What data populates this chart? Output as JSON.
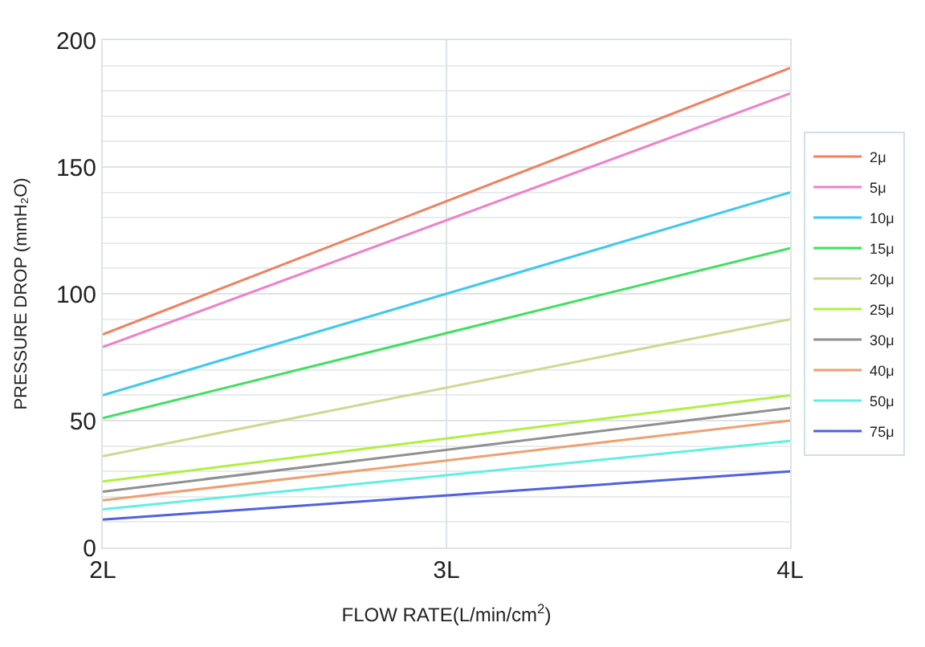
{
  "chart_data": {
    "type": "line",
    "xlabel": "FLOW RATE(L/min/cm$^{2}$)",
    "ylabel": "PRESSURE DROP (mmH₂O)",
    "x": [
      2,
      4
    ],
    "xlim": [
      2,
      4
    ],
    "xticks": [
      {
        "value": 2,
        "label": "2L"
      },
      {
        "value": 3,
        "label": "3L"
      },
      {
        "value": 4,
        "label": "4L"
      }
    ],
    "ylim": [
      0,
      200
    ],
    "yticks": [
      0,
      50,
      100,
      150,
      200
    ],
    "grid": true,
    "legend": "right",
    "marker": "none",
    "line_style": "solid",
    "series": [
      {
        "name": "2μ",
        "color": "#f08060",
        "values": [
          84,
          189
        ]
      },
      {
        "name": "5μ",
        "color": "#f080c8",
        "values": [
          79,
          179
        ]
      },
      {
        "name": "10μ",
        "color": "#40c8f0",
        "values": [
          60,
          140
        ]
      },
      {
        "name": "15μ",
        "color": "#40e060",
        "values": [
          51,
          118
        ]
      },
      {
        "name": "20μ",
        "color": "#d0d890",
        "values": [
          36,
          90
        ]
      },
      {
        "name": "25μ",
        "color": "#b0f040",
        "values": [
          26,
          60
        ]
      },
      {
        "name": "30μ",
        "color": "#909090",
        "values": [
          22,
          55
        ]
      },
      {
        "name": "40μ",
        "color": "#f0a070",
        "values": [
          18.6,
          50
        ]
      },
      {
        "name": "50μ",
        "color": "#60f0e0",
        "values": [
          15,
          42
        ]
      },
      {
        "name": "75μ",
        "color": "#5060e0",
        "values": [
          11,
          30
        ]
      }
    ]
  }
}
